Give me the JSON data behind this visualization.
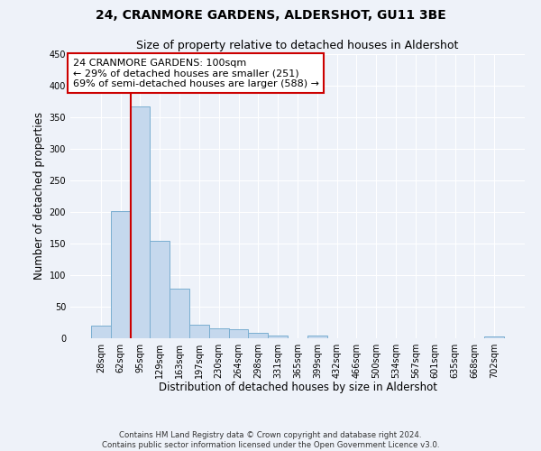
{
  "title": "24, CRANMORE GARDENS, ALDERSHOT, GU11 3BE",
  "subtitle": "Size of property relative to detached houses in Aldershot",
  "xlabel": "Distribution of detached houses by size in Aldershot",
  "ylabel": "Number of detached properties",
  "bar_labels": [
    "28sqm",
    "62sqm",
    "95sqm",
    "129sqm",
    "163sqm",
    "197sqm",
    "230sqm",
    "264sqm",
    "298sqm",
    "331sqm",
    "365sqm",
    "399sqm",
    "432sqm",
    "466sqm",
    "500sqm",
    "534sqm",
    "567sqm",
    "601sqm",
    "635sqm",
    "668sqm",
    "702sqm"
  ],
  "bar_values": [
    20,
    201,
    367,
    155,
    78,
    22,
    16,
    14,
    8,
    5,
    0,
    5,
    0,
    0,
    0,
    0,
    0,
    0,
    0,
    0,
    3
  ],
  "bar_color": "#c5d8ed",
  "bar_edge_color": "#7aaed0",
  "background_color": "#eef2f9",
  "grid_color": "#ffffff",
  "ylim": [
    0,
    450
  ],
  "yticks": [
    0,
    50,
    100,
    150,
    200,
    250,
    300,
    350,
    400,
    450
  ],
  "vline_color": "#cc0000",
  "annotation_title": "24 CRANMORE GARDENS: 100sqm",
  "annotation_line1": "← 29% of detached houses are smaller (251)",
  "annotation_line2": "69% of semi-detached houses are larger (588) →",
  "annotation_box_color": "#ffffff",
  "annotation_border_color": "#cc0000",
  "footer_line1": "Contains HM Land Registry data © Crown copyright and database right 2024.",
  "footer_line2": "Contains public sector information licensed under the Open Government Licence v3.0."
}
